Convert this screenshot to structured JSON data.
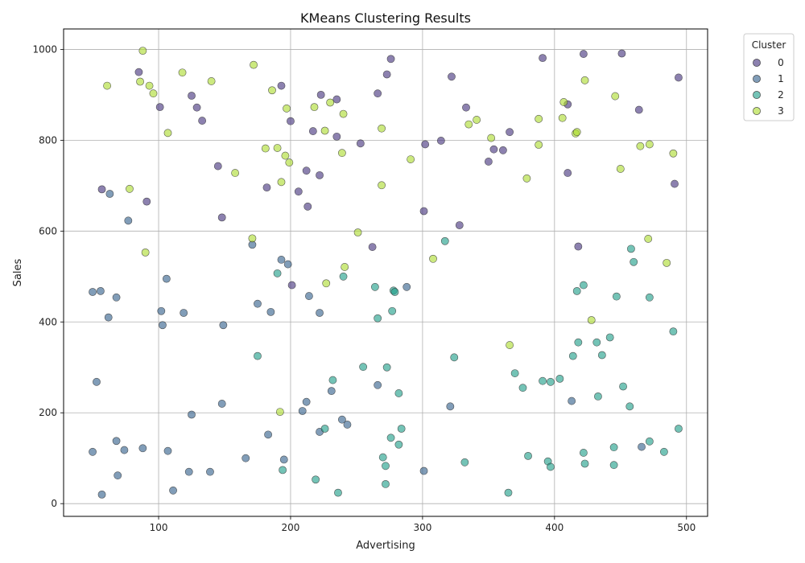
{
  "chart_data": {
    "type": "scatter",
    "title": "KMeans Clustering Results",
    "xlabel": "Advertising",
    "ylabel": "Sales",
    "xlim": [
      28,
      516
    ],
    "ylim": [
      -28,
      1045
    ],
    "xticks": [
      100,
      200,
      300,
      400,
      500
    ],
    "yticks": [
      0,
      200,
      400,
      600,
      800,
      1000
    ],
    "grid": true,
    "legend": {
      "title": "Cluster",
      "placement": "outside-top-right"
    },
    "series": [
      {
        "name": "0",
        "color": "#46337e",
        "points": [
          [
            85,
            950
          ],
          [
            101,
            873
          ],
          [
            125,
            898
          ],
          [
            129,
            872
          ],
          [
            133,
            843
          ],
          [
            193,
            920
          ],
          [
            200,
            842
          ],
          [
            217,
            820
          ],
          [
            223,
            900
          ],
          [
            235,
            890
          ],
          [
            235,
            808
          ],
          [
            253,
            793
          ],
          [
            266,
            903
          ],
          [
            273,
            945
          ],
          [
            276,
            979
          ],
          [
            302,
            791
          ],
          [
            314,
            799
          ],
          [
            322,
            940
          ],
          [
            333,
            872
          ],
          [
            350,
            753
          ],
          [
            354,
            780
          ],
          [
            361,
            778
          ],
          [
            366,
            818
          ],
          [
            391,
            981
          ],
          [
            410,
            728
          ],
          [
            410,
            879
          ],
          [
            418,
            566
          ],
          [
            422,
            990
          ],
          [
            451,
            991
          ],
          [
            464,
            867
          ],
          [
            491,
            704
          ],
          [
            494,
            938
          ],
          [
            57,
            692
          ],
          [
            91,
            665
          ],
          [
            145,
            743
          ],
          [
            148,
            630
          ],
          [
            182,
            696
          ],
          [
            201,
            481
          ],
          [
            206,
            687
          ],
          [
            212,
            733
          ],
          [
            213,
            654
          ],
          [
            222,
            723
          ],
          [
            262,
            565
          ],
          [
            301,
            644
          ],
          [
            328,
            613
          ]
        ]
      },
      {
        "name": "1",
        "color": "#34618d",
        "points": [
          [
            50,
            466
          ],
          [
            53,
            268
          ],
          [
            50,
            114
          ],
          [
            56,
            468
          ],
          [
            57,
            20
          ],
          [
            62,
            410
          ],
          [
            63,
            682
          ],
          [
            68,
            454
          ],
          [
            68,
            138
          ],
          [
            69,
            62
          ],
          [
            74,
            118
          ],
          [
            77,
            623
          ],
          [
            88,
            122
          ],
          [
            102,
            424
          ],
          [
            103,
            393
          ],
          [
            106,
            495
          ],
          [
            107,
            116
          ],
          [
            111,
            29
          ],
          [
            119,
            420
          ],
          [
            123,
            70
          ],
          [
            125,
            196
          ],
          [
            139,
            70
          ],
          [
            148,
            220
          ],
          [
            149,
            393
          ],
          [
            166,
            100
          ],
          [
            171,
            570
          ],
          [
            175,
            440
          ],
          [
            183,
            152
          ],
          [
            185,
            422
          ],
          [
            193,
            537
          ],
          [
            195,
            97
          ],
          [
            198,
            527
          ],
          [
            209,
            204
          ],
          [
            212,
            224
          ],
          [
            214,
            457
          ],
          [
            222,
            420
          ],
          [
            222,
            158
          ],
          [
            231,
            248
          ],
          [
            239,
            185
          ],
          [
            243,
            174
          ],
          [
            266,
            261
          ],
          [
            288,
            477
          ],
          [
            301,
            72
          ],
          [
            321,
            214
          ],
          [
            413,
            226
          ],
          [
            466,
            125
          ]
        ]
      },
      {
        "name": "2",
        "color": "#1f9e89",
        "points": [
          [
            175,
            325
          ],
          [
            190,
            507
          ],
          [
            194,
            74
          ],
          [
            219,
            53
          ],
          [
            226,
            165
          ],
          [
            232,
            272
          ],
          [
            236,
            24
          ],
          [
            240,
            500
          ],
          [
            255,
            301
          ],
          [
            264,
            477
          ],
          [
            266,
            408
          ],
          [
            270,
            102
          ],
          [
            272,
            83
          ],
          [
            272,
            43
          ],
          [
            273,
            300
          ],
          [
            276,
            145
          ],
          [
            277,
            424
          ],
          [
            278,
            469
          ],
          [
            279,
            466
          ],
          [
            282,
            243
          ],
          [
            282,
            130
          ],
          [
            284,
            165
          ],
          [
            317,
            578
          ],
          [
            324,
            322
          ],
          [
            332,
            91
          ],
          [
            365,
            24
          ],
          [
            370,
            287
          ],
          [
            376,
            255
          ],
          [
            380,
            105
          ],
          [
            391,
            270
          ],
          [
            395,
            93
          ],
          [
            397,
            81
          ],
          [
            397,
            268
          ],
          [
            404,
            275
          ],
          [
            414,
            325
          ],
          [
            417,
            468
          ],
          [
            418,
            355
          ],
          [
            422,
            481
          ],
          [
            422,
            112
          ],
          [
            423,
            88
          ],
          [
            432,
            355
          ],
          [
            433,
            236
          ],
          [
            436,
            327
          ],
          [
            442,
            366
          ],
          [
            445,
            124
          ],
          [
            445,
            85
          ],
          [
            447,
            456
          ],
          [
            452,
            258
          ],
          [
            457,
            214
          ],
          [
            458,
            561
          ],
          [
            460,
            532
          ],
          [
            472,
            137
          ],
          [
            472,
            454
          ],
          [
            483,
            114
          ],
          [
            490,
            379
          ],
          [
            494,
            165
          ]
        ]
      },
      {
        "name": "3",
        "color": "#addc30",
        "points": [
          [
            61,
            920
          ],
          [
            78,
            693
          ],
          [
            86,
            929
          ],
          [
            88,
            997
          ],
          [
            90,
            553
          ],
          [
            93,
            920
          ],
          [
            96,
            903
          ],
          [
            107,
            816
          ],
          [
            118,
            949
          ],
          [
            140,
            930
          ],
          [
            158,
            728
          ],
          [
            171,
            584
          ],
          [
            172,
            966
          ],
          [
            181,
            782
          ],
          [
            186,
            910
          ],
          [
            190,
            783
          ],
          [
            192,
            202
          ],
          [
            193,
            708
          ],
          [
            196,
            766
          ],
          [
            197,
            870
          ],
          [
            199,
            751
          ],
          [
            218,
            873
          ],
          [
            226,
            821
          ],
          [
            227,
            485
          ],
          [
            230,
            883
          ],
          [
            240,
            858
          ],
          [
            239,
            772
          ],
          [
            241,
            521
          ],
          [
            251,
            597
          ],
          [
            269,
            826
          ],
          [
            269,
            701
          ],
          [
            291,
            758
          ],
          [
            308,
            539
          ],
          [
            335,
            835
          ],
          [
            341,
            845
          ],
          [
            352,
            805
          ],
          [
            366,
            349
          ],
          [
            379,
            716
          ],
          [
            388,
            847
          ],
          [
            388,
            790
          ],
          [
            406,
            849
          ],
          [
            407,
            884
          ],
          [
            416,
            815
          ],
          [
            417,
            818
          ],
          [
            423,
            932
          ],
          [
            428,
            404
          ],
          [
            446,
            897
          ],
          [
            450,
            737
          ],
          [
            465,
            787
          ],
          [
            471,
            583
          ],
          [
            472,
            791
          ],
          [
            485,
            530
          ],
          [
            490,
            771
          ]
        ]
      }
    ]
  }
}
